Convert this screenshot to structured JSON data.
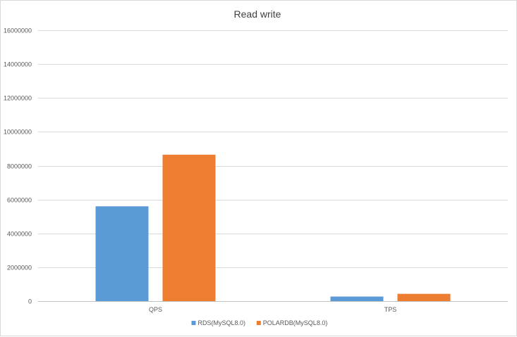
{
  "chart_data": {
    "type": "bar",
    "title": "Read write",
    "categories": [
      "QPS",
      "TPS"
    ],
    "series": [
      {
        "name": "RDS(MySQL8.0)",
        "color": "#5b9bd5",
        "values": [
          5600000,
          270000
        ]
      },
      {
        "name": "POLARDB(MySQL8.0)",
        "color": "#ed7d31",
        "values": [
          8650000,
          430000
        ]
      }
    ],
    "ylim": [
      0,
      16000000
    ],
    "yticks": [
      0,
      2000000,
      4000000,
      6000000,
      8000000,
      10000000,
      12000000,
      14000000,
      16000000
    ],
    "grid": true,
    "legend_position": "bottom"
  }
}
